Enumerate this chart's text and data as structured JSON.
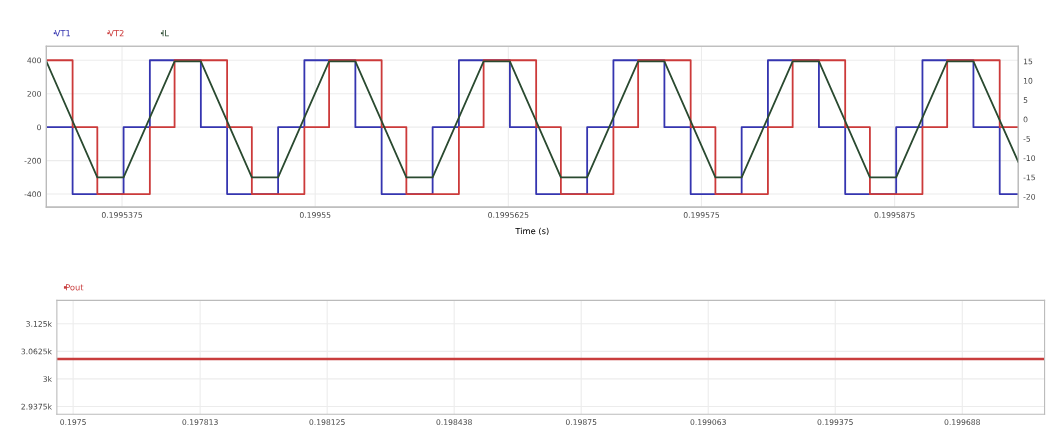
{
  "chart_data": [
    {
      "type": "step",
      "xlabel": "Time (s)",
      "legend": "top left",
      "grid": true,
      "xlim": [
        0.1995326,
        0.1995955
      ],
      "xticks": [
        0.1995375,
        0.19955,
        0.1995625,
        0.199575,
        0.1995875
      ],
      "ylim": [
        -478,
        484
      ],
      "yticks": [
        -400,
        -200,
        0,
        200,
        400
      ],
      "y2lim": [
        -22.7,
        18.9
      ],
      "y2ticks": [
        -20,
        -15,
        -10,
        -5,
        0,
        5,
        10,
        15
      ],
      "series": [
        {
          "name": "VT1",
          "color": "#3535b0",
          "x": [
            0.1995326,
            0.1995343,
            0.1995376,
            0.1995393,
            0.1995426,
            0.1995443,
            0.1995476,
            0.1995493,
            0.1995526,
            0.1995543,
            0.1995576,
            0.1995593,
            0.1995626,
            0.1995643,
            0.1995676,
            0.1995693,
            0.1995726,
            0.1995743,
            0.1995776,
            0.1995793,
            0.1995826,
            0.1995843,
            0.1995876,
            0.1995893,
            0.1995926,
            0.1995943,
            0.1995955
          ],
          "values": [
            0,
            -400,
            0,
            400,
            0,
            -400,
            0,
            400,
            0,
            -400,
            0,
            400,
            0,
            -400,
            0,
            400,
            0,
            -400,
            0,
            400,
            0,
            -400,
            0,
            400,
            0,
            -400,
            -400
          ]
        },
        {
          "name": "VT2",
          "color": "#cc3a3a",
          "x": [
            0.1995326,
            0.1995343,
            0.1995359,
            0.1995393,
            0.1995409,
            0.1995443,
            0.1995459,
            0.1995493,
            0.1995509,
            0.1995543,
            0.1995559,
            0.1995593,
            0.1995609,
            0.1995643,
            0.1995659,
            0.1995693,
            0.1995709,
            0.1995743,
            0.1995759,
            0.1995793,
            0.1995809,
            0.1995843,
            0.1995859,
            0.1995893,
            0.1995909,
            0.1995943,
            0.1995955
          ],
          "values": [
            400,
            0,
            -400,
            0,
            400,
            0,
            -400,
            0,
            400,
            0,
            -400,
            0,
            400,
            0,
            -400,
            0,
            400,
            0,
            -400,
            0,
            400,
            0,
            -400,
            0,
            400,
            0,
            0
          ]
        },
        {
          "name": "IL",
          "type": "line",
          "axis": "y2",
          "color": "#2a4a30",
          "x": [
            0.1995326,
            0.1995359,
            0.1995376,
            0.1995409,
            0.1995426,
            0.1995459,
            0.1995476,
            0.1995509,
            0.1995526,
            0.1995559,
            0.1995576,
            0.1995609,
            0.1995626,
            0.1995659,
            0.1995676,
            0.1995709,
            0.1995726,
            0.1995759,
            0.1995776,
            0.1995809,
            0.1995826,
            0.1995859,
            0.1995876,
            0.1995909,
            0.1995926,
            0.1995955
          ],
          "values": [
            15,
            -15,
            -15,
            15,
            15,
            -15,
            -15,
            15,
            15,
            -15,
            -15,
            15,
            15,
            -15,
            -15,
            15,
            15,
            -15,
            -15,
            15,
            15,
            -15,
            -15,
            15,
            15,
            -11
          ]
        }
      ]
    },
    {
      "type": "line",
      "legend": "top left",
      "grid": true,
      "xlim": [
        0.19746,
        0.19989
      ],
      "xticks": [
        0.1975,
        {
          "value": 0.1978125,
          "label": "0.197813"
        },
        0.198125,
        {
          "value": 0.1984375,
          "label": "0.198438"
        },
        0.19875,
        {
          "value": 0.1990625,
          "label": "0.199063"
        },
        0.199375,
        {
          "value": 0.1996875,
          "label": "0.199688"
        }
      ],
      "ylim": [
        2920,
        3178
      ],
      "yticks": [
        {
          "value": 2937.5,
          "label": "2.9375k"
        },
        {
          "value": 3000,
          "label": "3k"
        },
        {
          "value": 3062.5,
          "label": "3.0625k"
        },
        {
          "value": 3125,
          "label": "3.125k"
        }
      ],
      "series": [
        {
          "name": "Pout",
          "color": "#c83c3c",
          "x": [
            0.19746,
            0.19989
          ],
          "values": [
            3045,
            3045
          ]
        }
      ]
    }
  ]
}
